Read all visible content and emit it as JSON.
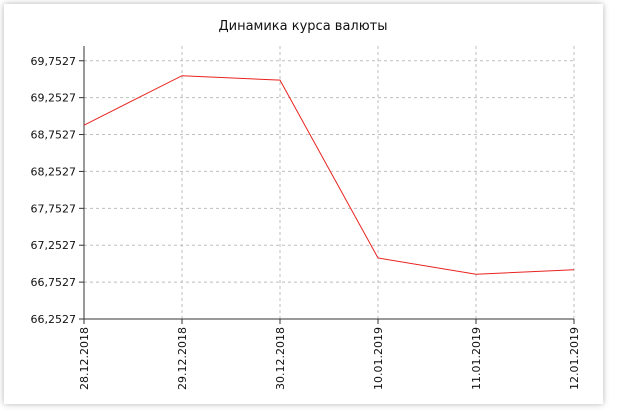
{
  "chart_data": {
    "type": "line",
    "title": "Динамика курса валюты",
    "xlabel": "",
    "ylabel": "",
    "categories": [
      "28.12.2018",
      "29.12.2018",
      "30.12.2018",
      "10.01.2019",
      "11.01.2019",
      "12.01.2019"
    ],
    "values": [
      68.88,
      69.55,
      69.49,
      67.08,
      66.86,
      66.92
    ],
    "y_ticks": [
      "66,2527",
      "66,7527",
      "67,2527",
      "67,7527",
      "68,2527",
      "68,7527",
      "69,2527",
      "69,7527"
    ],
    "ylim": [
      66.2527,
      69.9527
    ],
    "grid": true,
    "line_color": "#e8231f"
  }
}
